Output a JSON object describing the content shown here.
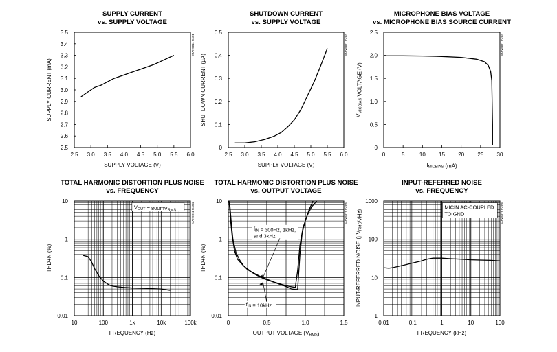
{
  "chart_data": [
    {
      "type": "line",
      "title": "SUPPLY CURRENT",
      "subtitle": "vs. SUPPLY VOLTAGE",
      "xlabel": "SUPPLY VOLTAGE (V)",
      "ylabel": "SUPPLY CURRENT (mA)",
      "code": "MAX9811 toc01",
      "xscale": "linear",
      "yscale": "linear",
      "xlim": [
        2.5,
        6.0
      ],
      "ylim": [
        2.5,
        3.5
      ],
      "xticks": [
        "2.5",
        "3.0",
        "3.5",
        "4.0",
        "4.5",
        "5.0",
        "5.5",
        "6.0"
      ],
      "xtick_values": [
        2.5,
        3.0,
        3.5,
        4.0,
        4.5,
        5.0,
        5.5,
        6.0
      ],
      "yticks": [
        "2.5",
        "2.6",
        "2.7",
        "2.8",
        "2.9",
        "3.0",
        "3.1",
        "3.2",
        "3.3",
        "3.4",
        "3.5"
      ],
      "ytick_values": [
        2.5,
        2.6,
        2.7,
        2.8,
        2.9,
        3.0,
        3.1,
        3.2,
        3.3,
        3.4,
        3.5
      ],
      "grid": false,
      "series": [
        {
          "x": [
            2.7,
            2.9,
            3.1,
            3.3,
            3.5,
            3.7,
            4.0,
            4.3,
            4.6,
            4.9,
            5.2,
            5.5
          ],
          "y": [
            2.94,
            2.98,
            3.02,
            3.04,
            3.07,
            3.1,
            3.13,
            3.16,
            3.19,
            3.22,
            3.26,
            3.3
          ]
        }
      ],
      "annotations": []
    },
    {
      "type": "line",
      "title": "SHUTDOWN CURRENT",
      "subtitle": "vs. SUPPLY VOLTAGE",
      "xlabel": "SUPPLY VOLTAGE (V)",
      "ylabel": "SHUTDOWN CURRENT (µA)",
      "code": "MAX9811 toc02",
      "xscale": "linear",
      "yscale": "linear",
      "xlim": [
        2.5,
        6.0
      ],
      "ylim": [
        0,
        0.5
      ],
      "xticks": [
        "2.5",
        "3.0",
        "3.5",
        "4.0",
        "4.5",
        "5.0",
        "5.5",
        "6.0"
      ],
      "xtick_values": [
        2.5,
        3.0,
        3.5,
        4.0,
        4.5,
        5.0,
        5.5,
        6.0
      ],
      "yticks": [
        "0",
        "0.1",
        "0.2",
        "0.3",
        "0.4",
        "0.5"
      ],
      "ytick_values": [
        0,
        0.1,
        0.2,
        0.3,
        0.4,
        0.5
      ],
      "grid": false,
      "series": [
        {
          "x": [
            2.7,
            3.0,
            3.3,
            3.6,
            3.9,
            4.1,
            4.3,
            4.5,
            4.7,
            4.9,
            5.1,
            5.3,
            5.5
          ],
          "y": [
            0.02,
            0.02,
            0.025,
            0.035,
            0.05,
            0.065,
            0.09,
            0.12,
            0.165,
            0.225,
            0.285,
            0.355,
            0.43
          ]
        }
      ],
      "annotations": []
    },
    {
      "type": "line",
      "title": "MICROPHONE BIAS VOLTAGE",
      "subtitle": "vs. MICROPHONE BIAS SOURCE CURRENT",
      "xlabel": "IMICBIAS (mA)",
      "ylabel": "VMICBIAS VOLTAGE (V)",
      "code": "MAX9811 toc03",
      "xscale": "linear",
      "yscale": "linear",
      "xlim": [
        0,
        30
      ],
      "ylim": [
        0,
        2.5
      ],
      "xticks": [
        "0",
        "5",
        "10",
        "15",
        "20",
        "25",
        "30"
      ],
      "xtick_values": [
        0,
        5,
        10,
        15,
        20,
        25,
        30
      ],
      "yticks": [
        "0",
        "0.5",
        "1.0",
        "1.5",
        "2.0",
        "2.5"
      ],
      "ytick_values": [
        0,
        0.5,
        1.0,
        1.5,
        2.0,
        2.5
      ],
      "grid": false,
      "series": [
        {
          "x": [
            0,
            5,
            10,
            15,
            20,
            24,
            26,
            27,
            27.6,
            27.9,
            28.0,
            28.1,
            28.1
          ],
          "y": [
            1.99,
            1.99,
            1.985,
            1.975,
            1.955,
            1.915,
            1.86,
            1.78,
            1.65,
            1.45,
            1.0,
            0.5,
            0.05
          ]
        }
      ],
      "annotations": []
    },
    {
      "type": "line",
      "title": "TOTAL HARMONIC DISTORTION PLUS NOISE",
      "subtitle": "vs. FREQUENCY",
      "xlabel": "FREQUENCY (Hz)",
      "ylabel": "THD+N (%)",
      "code": "MAX9811 toc04",
      "xscale": "log",
      "yscale": "log",
      "xlim": [
        10,
        100000
      ],
      "ylim": [
        0.01,
        10
      ],
      "xticks": [
        "10",
        "100",
        "1k",
        "10k",
        "100k"
      ],
      "xtick_values": [
        10,
        100,
        1000,
        10000,
        100000
      ],
      "yticks": [
        "0.01",
        "0.1",
        "1",
        "10"
      ],
      "ytick_values": [
        0.01,
        0.1,
        1,
        10
      ],
      "grid": true,
      "series": [
        {
          "x": [
            20,
            30,
            40,
            50,
            70,
            100,
            150,
            200,
            300,
            500,
            1000,
            2000,
            5000,
            10000,
            20000
          ],
          "y": [
            0.38,
            0.35,
            0.25,
            0.17,
            0.11,
            0.08,
            0.065,
            0.06,
            0.057,
            0.055,
            0.053,
            0.052,
            0.051,
            0.05,
            0.046
          ]
        }
      ],
      "annotations": [
        {
          "text": "VOUT = 800mVRMS",
          "at": [
            1200,
            6.5
          ]
        }
      ]
    },
    {
      "type": "line",
      "title": "TOTAL HARMONIC DISTORTION PLUS NOISE",
      "subtitle": "vs. OUTPUT VOLTAGE",
      "xlabel": "OUTPUT VOLTAGE (VRMS)",
      "ylabel": "THD+N (%)",
      "code": "MAX9811 toc05",
      "xscale": "linear",
      "yscale": "log",
      "xlim": [
        0,
        1.5
      ],
      "ylim": [
        0.01,
        10
      ],
      "xticks": [
        "0",
        "0.5",
        "1.0",
        "1.5"
      ],
      "xtick_values": [
        0,
        0.5,
        1.0,
        1.5
      ],
      "yticks": [
        "0.01",
        "0.1",
        "1",
        "10"
      ],
      "ytick_values": [
        0.01,
        0.1,
        1,
        10
      ],
      "grid": true,
      "series": [
        {
          "name": "fIN = 300Hz, 1kHz, and 3kHz",
          "x": [
            0.02,
            0.04,
            0.06,
            0.1,
            0.15,
            0.2,
            0.3,
            0.4,
            0.5,
            0.6,
            0.7,
            0.8,
            0.87,
            0.9,
            0.93,
            0.97,
            1.02,
            1.08,
            1.15
          ],
          "y": [
            8,
            2.5,
            1.0,
            0.45,
            0.28,
            0.2,
            0.14,
            0.11,
            0.09,
            0.075,
            0.065,
            0.058,
            0.055,
            0.15,
            0.7,
            2.0,
            4.0,
            7.0,
            10
          ]
        },
        {
          "name": "fIN = 10kHz",
          "x": [
            0.01,
            0.03,
            0.05,
            0.08,
            0.12,
            0.18,
            0.25,
            0.35,
            0.45,
            0.55,
            0.65,
            0.75,
            0.82,
            0.9,
            0.93,
            0.96,
            1.0,
            1.05,
            1.1
          ],
          "y": [
            10,
            3.0,
            1.2,
            0.5,
            0.3,
            0.22,
            0.16,
            0.12,
            0.095,
            0.08,
            0.068,
            0.058,
            0.05,
            0.048,
            0.4,
            1.5,
            3.0,
            6.0,
            10
          ]
        }
      ],
      "annotations": [
        {
          "text": "fIN = 300Hz, 1kHz,",
          "at": [
            0.33,
            1.7
          ]
        },
        {
          "text": "and 3kHz",
          "at": [
            0.33,
            1.1
          ]
        },
        {
          "text": "fIN = 10kHz",
          "at": [
            0.23,
            0.018
          ]
        }
      ]
    },
    {
      "type": "line",
      "title": "INPUT-REFERRED NOISE",
      "subtitle": "vs. FREQUENCY",
      "xlabel": "FREQUENCY (kHz)",
      "ylabel": "INPUT-REFERRED NOISE (µVRMS/√Hz)",
      "code": "MAX9811 toc06",
      "xscale": "log",
      "yscale": "log",
      "xlim": [
        0.01,
        100
      ],
      "ylim": [
        1,
        1000
      ],
      "xticks": [
        "0.01",
        "0.1",
        "1",
        "10",
        "100"
      ],
      "xtick_values": [
        0.01,
        0.1,
        1,
        10,
        100
      ],
      "yticks": [
        "1",
        "10",
        "100",
        "1000"
      ],
      "ytick_values": [
        1,
        10,
        100,
        1000
      ],
      "grid": true,
      "series": [
        {
          "x": [
            0.01,
            0.015,
            0.02,
            0.05,
            0.1,
            0.2,
            0.3,
            0.5,
            1,
            2,
            5,
            10,
            20,
            50,
            100
          ],
          "y": [
            18,
            17.5,
            18,
            21,
            24,
            27,
            30,
            32,
            32,
            31,
            30,
            29,
            28.5,
            28,
            27
          ]
        }
      ],
      "annotations": [
        {
          "text": "MICIN AC-COUPLED",
          "at": [
            1.3,
            620
          ]
        },
        {
          "text": "TO GND",
          "at": [
            1.3,
            430
          ]
        }
      ]
    }
  ]
}
